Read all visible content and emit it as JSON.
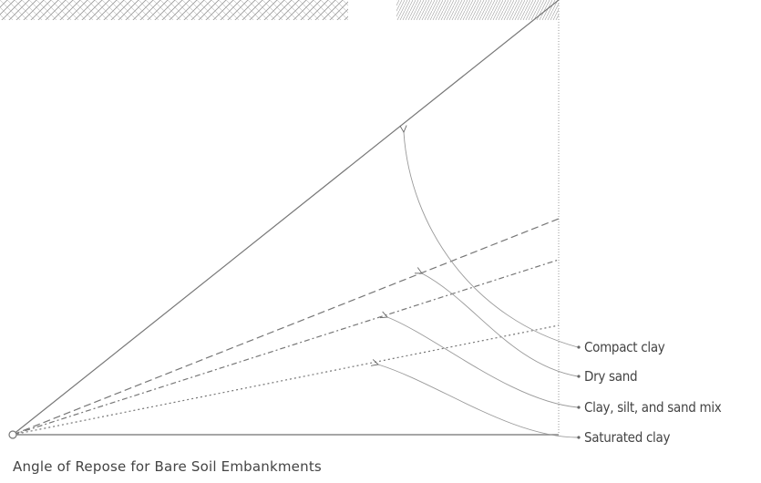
{
  "title": "Angle of Repose for Bare Soil Embankments",
  "labels": [
    "Compact clay",
    "Dry sand",
    "Clay, silt, and sand mix",
    "Saturated clay"
  ]
}
